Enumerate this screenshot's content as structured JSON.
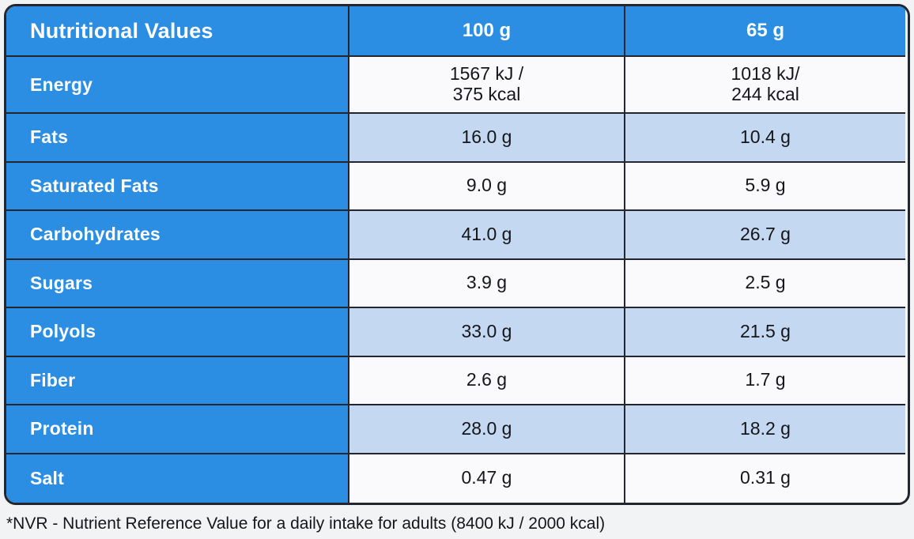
{
  "colors": {
    "header_blue": "#2b8ee2",
    "row_light_blue": "#c4d8f1",
    "row_white": "#fafafc",
    "border": "#23262e",
    "text_dark": "#14161a",
    "text_white": "#ffffff",
    "page_background": "#f2f3f5"
  },
  "table": {
    "header": {
      "title": "Nutritional Values",
      "col_100g": "100 g",
      "col_65g": "65 g"
    },
    "rows": [
      {
        "label": "Energy",
        "v100": "1567 kJ /\n375 kcal",
        "v65": "1018 kJ/\n244 kcal",
        "shade": "white"
      },
      {
        "label": "Fats",
        "v100": "16.0 g",
        "v65": "10.4 g",
        "shade": "blue"
      },
      {
        "label": "Saturated Fats",
        "v100": "9.0 g",
        "v65": "5.9 g",
        "shade": "white"
      },
      {
        "label": "Carbohydrates",
        "v100": "41.0 g",
        "v65": "26.7 g",
        "shade": "blue"
      },
      {
        "label": "Sugars",
        "v100": "3.9 g",
        "v65": "2.5 g",
        "shade": "white"
      },
      {
        "label": "Polyols",
        "v100": "33.0 g",
        "v65": "21.5 g",
        "shade": "blue"
      },
      {
        "label": "Fiber",
        "v100": "2.6 g",
        "v65": "1.7 g",
        "shade": "white"
      },
      {
        "label": "Protein",
        "v100": "28.0 g",
        "v65": "18.2 g",
        "shade": "blue"
      },
      {
        "label": "Salt",
        "v100": "0.47 g",
        "v65": "0.31 g",
        "shade": "white"
      }
    ]
  },
  "footnote": "*NVR - Nutrient Reference Value for a daily intake for adults (8400 kJ / 2000 kcal)"
}
